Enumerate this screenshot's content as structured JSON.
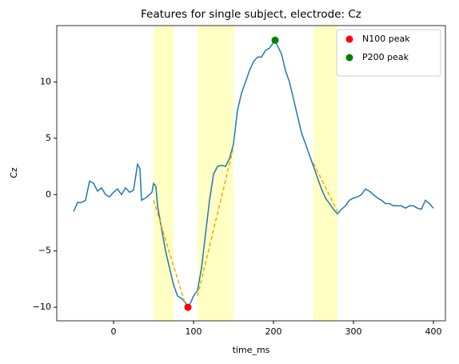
{
  "chart_data": {
    "type": "line",
    "title": "Features for single subject, electrode: Cz",
    "xlabel": "time_ms",
    "ylabel": "Cz",
    "xlim": [
      -71,
      415
    ],
    "ylim": [
      -11.2,
      15.0
    ],
    "xticks": [
      0,
      100,
      200,
      300,
      400
    ],
    "yticks": [
      {
        "value": -10,
        "label": "−10"
      },
      {
        "value": -5,
        "label": "−5"
      },
      0,
      5,
      10
    ],
    "spans": [
      [
        50,
        75
      ],
      [
        105,
        150
      ],
      [
        250,
        280
      ]
    ],
    "span_color": "#ffffc4",
    "series": [
      {
        "color": "#1f77b4",
        "x": [
          -50,
          -45,
          -40,
          -35,
          -30,
          -25,
          -20,
          -15,
          -10,
          -5,
          0,
          5,
          10,
          15,
          20,
          25,
          30,
          33,
          35,
          40,
          45,
          48,
          50,
          53,
          55,
          60,
          65,
          70,
          75,
          80,
          85,
          90,
          93,
          97,
          100,
          105,
          110,
          115,
          120,
          125,
          130,
          135,
          140,
          145,
          150,
          155,
          160,
          165,
          170,
          175,
          180,
          185,
          190,
          195,
          202,
          205,
          210,
          215,
          220,
          225,
          230,
          235,
          240,
          245,
          250,
          255,
          260,
          265,
          270,
          275,
          280,
          285,
          290,
          295,
          300,
          305,
          310,
          315,
          320,
          325,
          330,
          335,
          340,
          345,
          350,
          355,
          360,
          365,
          370,
          375,
          380,
          385,
          390,
          395,
          400
        ],
        "values": [
          -1.5,
          -0.7,
          -0.7,
          -0.5,
          1.2,
          1.0,
          0.3,
          0.6,
          0.0,
          -0.2,
          0.2,
          0.5,
          0.0,
          0.6,
          0.2,
          0.4,
          2.7,
          2.3,
          -0.5,
          -0.3,
          0.0,
          0.2,
          1.0,
          0.7,
          -1.0,
          -3.0,
          -5.0,
          -6.5,
          -8.0,
          -9.0,
          -9.2,
          -9.6,
          -10.0,
          -9.5,
          -9.0,
          -8.5,
          -6.5,
          -3.5,
          -0.5,
          1.8,
          2.5,
          2.6,
          2.5,
          3.2,
          4.5,
          7.5,
          9.0,
          10.0,
          11.0,
          11.8,
          12.2,
          12.2,
          12.8,
          13.0,
          13.7,
          13.2,
          12.5,
          11.0,
          10.0,
          8.5,
          7.0,
          5.5,
          4.5,
          3.5,
          2.5,
          1.5,
          0.5,
          -0.3,
          -0.8,
          -1.3,
          -1.7,
          -1.3,
          -1.0,
          -0.5,
          -0.3,
          -0.2,
          0.0,
          0.5,
          0.3,
          0.0,
          -0.3,
          -0.5,
          -0.8,
          -0.8,
          -1.0,
          -1.0,
          -1.0,
          -1.2,
          -1.0,
          -1.0,
          -1.2,
          -1.3,
          -0.5,
          -0.8,
          -1.2
        ]
      }
    ],
    "fits": {
      "color": "orange",
      "x": [
        50,
        90,
        null,
        105,
        150,
        null,
        250,
        280
      ],
      "values": [
        -0.5,
        -9.8,
        null,
        -9.0,
        4.2,
        null,
        2.8,
        -1.5
      ]
    },
    "points": [
      {
        "name": "N100 peak",
        "color": "#ff0000",
        "x": 93,
        "y": -10.0
      },
      {
        "name": "P200 peak",
        "color": "#008000",
        "x": 202,
        "y": 13.7
      }
    ],
    "legend": "upper right"
  }
}
